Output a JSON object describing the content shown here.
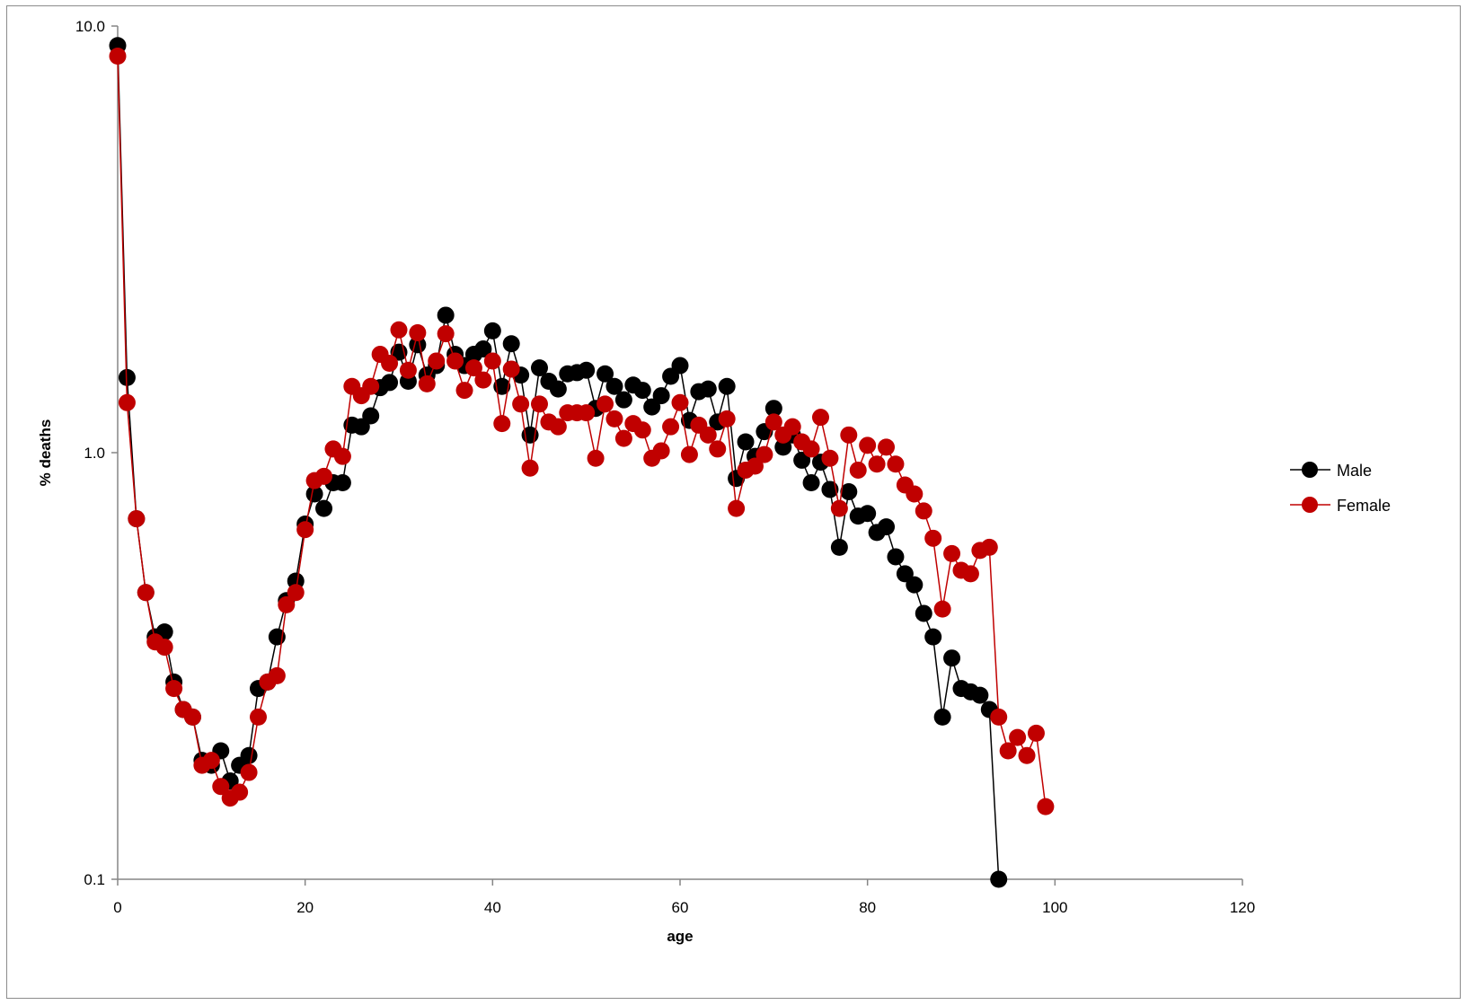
{
  "chart_data": {
    "type": "scatter",
    "title": "",
    "xlabel": "age",
    "ylabel": "% deaths",
    "xlim": [
      0,
      120
    ],
    "x_ticks": [
      0,
      20,
      40,
      60,
      80,
      100,
      120
    ],
    "ylim": [
      0.1,
      10.0
    ],
    "y_scale": "log",
    "y_ticks": [
      10.0,
      1.0,
      0.1
    ],
    "y_tick_labels": [
      "10.0",
      "1.0",
      "0.1"
    ],
    "grid": false,
    "legend_position": "right",
    "series": [
      {
        "name": "Male",
        "color": "#000000",
        "x": [
          0,
          1,
          2,
          3,
          4,
          5,
          6,
          7,
          8,
          9,
          10,
          11,
          12,
          13,
          14,
          15,
          16,
          17,
          18,
          19,
          20,
          21,
          22,
          23,
          24,
          25,
          26,
          27,
          28,
          29,
          30,
          31,
          32,
          33,
          34,
          35,
          36,
          37,
          38,
          39,
          40,
          41,
          42,
          43,
          44,
          45,
          46,
          47,
          48,
          49,
          50,
          51,
          52,
          53,
          54,
          55,
          56,
          57,
          58,
          59,
          60,
          61,
          62,
          63,
          64,
          65,
          66,
          67,
          68,
          69,
          70,
          71,
          72,
          73,
          74,
          75,
          76,
          77,
          78,
          79,
          80,
          81,
          82,
          83,
          84,
          85,
          86,
          87,
          88,
          89,
          90,
          91,
          92,
          93,
          94
        ],
        "y": [
          9.0,
          1.5,
          0.7,
          0.47,
          0.37,
          0.38,
          0.29,
          0.25,
          0.24,
          0.19,
          0.185,
          0.2,
          0.17,
          0.185,
          0.195,
          0.28,
          0.29,
          0.37,
          0.45,
          0.5,
          0.68,
          0.8,
          0.74,
          0.85,
          0.85,
          1.16,
          1.15,
          1.22,
          1.42,
          1.46,
          1.72,
          1.47,
          1.79,
          1.52,
          1.6,
          2.1,
          1.7,
          1.6,
          1.7,
          1.75,
          1.93,
          1.43,
          1.8,
          1.52,
          1.1,
          1.58,
          1.47,
          1.41,
          1.53,
          1.54,
          1.56,
          1.27,
          1.53,
          1.43,
          1.33,
          1.44,
          1.4,
          1.28,
          1.36,
          1.51,
          1.6,
          1.19,
          1.39,
          1.41,
          1.18,
          1.43,
          0.87,
          1.06,
          0.98,
          1.12,
          1.27,
          1.03,
          1.1,
          0.96,
          0.85,
          0.95,
          0.82,
          0.6,
          0.81,
          0.71,
          0.72,
          0.65,
          0.67,
          0.57,
          0.52,
          0.49,
          0.42,
          0.37,
          0.24,
          0.33,
          0.28,
          0.275,
          0.27,
          0.25,
          0.1
        ]
      },
      {
        "name": "Female",
        "color": "#c00000",
        "x": [
          0,
          1,
          2,
          3,
          4,
          5,
          6,
          7,
          8,
          9,
          10,
          11,
          12,
          13,
          14,
          15,
          16,
          17,
          18,
          19,
          20,
          21,
          22,
          23,
          24,
          25,
          26,
          27,
          28,
          29,
          30,
          31,
          32,
          33,
          34,
          35,
          36,
          37,
          38,
          39,
          40,
          41,
          42,
          43,
          44,
          45,
          46,
          47,
          48,
          49,
          50,
          51,
          52,
          53,
          54,
          55,
          56,
          57,
          58,
          59,
          60,
          61,
          62,
          63,
          64,
          65,
          66,
          67,
          68,
          69,
          70,
          71,
          72,
          73,
          74,
          75,
          76,
          77,
          78,
          79,
          80,
          81,
          82,
          83,
          84,
          85,
          86,
          87,
          88,
          89,
          90,
          91,
          92,
          93,
          94,
          95,
          96,
          97,
          98,
          99
        ],
        "y": [
          8.5,
          1.31,
          0.7,
          0.47,
          0.36,
          0.35,
          0.28,
          0.25,
          0.24,
          0.185,
          0.19,
          0.165,
          0.155,
          0.16,
          0.178,
          0.24,
          0.29,
          0.3,
          0.44,
          0.47,
          0.66,
          0.86,
          0.88,
          1.02,
          0.98,
          1.43,
          1.36,
          1.43,
          1.7,
          1.62,
          1.94,
          1.56,
          1.91,
          1.45,
          1.64,
          1.9,
          1.64,
          1.4,
          1.58,
          1.48,
          1.64,
          1.17,
          1.57,
          1.3,
          0.92,
          1.3,
          1.18,
          1.15,
          1.24,
          1.24,
          1.24,
          0.97,
          1.3,
          1.2,
          1.08,
          1.17,
          1.13,
          0.97,
          1.01,
          1.15,
          1.31,
          0.99,
          1.16,
          1.1,
          1.02,
          1.2,
          0.74,
          0.91,
          0.93,
          0.99,
          1.18,
          1.1,
          1.15,
          1.06,
          1.02,
          1.21,
          0.97,
          0.74,
          1.1,
          0.91,
          1.04,
          0.94,
          1.03,
          0.94,
          0.84,
          0.8,
          0.73,
          0.63,
          0.43,
          0.58,
          0.53,
          0.52,
          0.59,
          0.6,
          0.24,
          0.2,
          0.215,
          0.195,
          0.22,
          0.148
        ]
      }
    ]
  }
}
